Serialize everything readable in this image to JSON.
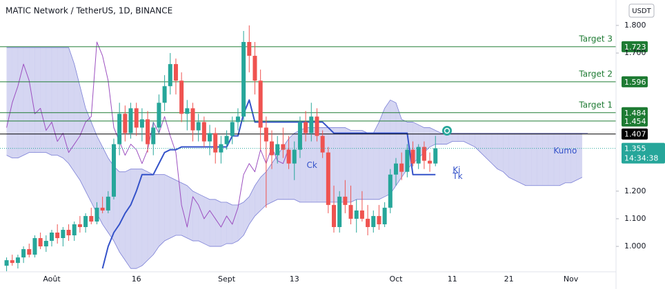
{
  "chart_data": {
    "type": "candlestick",
    "title": "MATIC Network / TetherUS, 1D, BINANCE",
    "currency": "USDT",
    "up_color": "#26a69a",
    "down_color": "#ef5350",
    "categories": [
      null,
      null,
      null,
      null,
      null,
      null,
      null,
      null,
      "Août",
      null,
      null,
      null,
      null,
      null,
      null,
      null,
      null,
      null,
      null,
      null,
      null,
      null,
      null,
      "16",
      null,
      null,
      null,
      null,
      null,
      null,
      null,
      null,
      null,
      null,
      null,
      null,
      null,
      null,
      null,
      "Sept",
      null,
      null,
      null,
      null,
      null,
      null,
      null,
      null,
      null,
      null,
      null,
      "13",
      null,
      null,
      null,
      null,
      null,
      null,
      null,
      null,
      null,
      null,
      null,
      null,
      null,
      null,
      null,
      null,
      null,
      "Oct",
      null,
      null,
      null,
      null,
      null,
      null,
      null,
      null,
      null,
      "11",
      null,
      null,
      null,
      null,
      null,
      null,
      null,
      null,
      null,
      "21",
      null,
      null,
      null,
      null,
      null,
      null,
      null,
      null,
      null,
      null,
      "Nov",
      null,
      null
    ],
    "open": [
      0.93,
      0.95,
      0.94,
      0.96,
      0.99,
      0.97,
      1.03,
      1.0,
      1.02,
      1.05,
      1.03,
      1.06,
      1.04,
      1.08,
      1.07,
      1.11,
      1.09,
      1.14,
      1.13,
      1.18,
      1.37,
      1.48,
      1.41,
      1.5,
      1.43,
      1.46,
      1.37,
      1.43,
      1.52,
      1.58,
      1.66,
      1.6,
      1.48,
      1.5,
      1.42,
      1.45,
      1.38,
      1.41,
      1.34,
      1.37,
      1.4,
      1.45,
      1.47,
      1.74,
      1.69,
      1.6,
      1.43,
      1.38,
      1.33,
      1.37,
      1.35,
      1.3,
      1.35,
      1.45,
      1.41,
      1.47,
      1.4,
      1.34,
      1.15,
      1.07,
      1.18,
      1.15,
      1.1,
      1.13,
      1.1,
      1.07,
      1.11,
      1.08,
      1.14,
      1.26,
      1.3,
      1.27,
      1.35,
      1.3,
      1.36,
      1.31,
      1.3,
      null,
      null,
      null,
      null,
      null,
      null,
      null,
      null,
      null,
      null,
      null,
      null,
      null,
      null,
      null,
      null,
      null,
      null,
      null,
      null,
      null,
      null,
      null,
      null,
      null,
      null
    ],
    "high": [
      0.96,
      0.97,
      0.97,
      1.0,
      1.01,
      1.04,
      1.05,
      1.04,
      1.06,
      1.08,
      1.07,
      1.08,
      1.09,
      1.11,
      1.12,
      1.14,
      1.16,
      1.18,
      1.2,
      1.39,
      1.52,
      1.51,
      1.52,
      1.52,
      1.5,
      1.49,
      1.45,
      1.55,
      1.62,
      1.7,
      1.68,
      1.63,
      1.53,
      1.52,
      1.48,
      1.47,
      1.44,
      1.43,
      1.4,
      1.42,
      1.47,
      1.5,
      1.78,
      1.8,
      1.74,
      1.64,
      1.47,
      1.42,
      1.4,
      1.43,
      1.4,
      1.38,
      1.47,
      1.49,
      1.52,
      1.5,
      1.42,
      1.36,
      1.22,
      1.2,
      1.24,
      1.22,
      1.17,
      1.2,
      1.15,
      1.13,
      1.15,
      1.16,
      1.28,
      1.32,
      1.34,
      1.37,
      1.38,
      1.37,
      1.38,
      1.34,
      1.4,
      null,
      null,
      null,
      null,
      null,
      null,
      null,
      null,
      null,
      null,
      null,
      null,
      null,
      null,
      null,
      null,
      null,
      null,
      null,
      null,
      null,
      null,
      null,
      null,
      null,
      null
    ],
    "low": [
      0.91,
      0.93,
      0.92,
      0.94,
      0.96,
      0.96,
      0.99,
      0.98,
      1.0,
      1.01,
      1.0,
      1.02,
      1.02,
      1.05,
      1.05,
      1.08,
      1.08,
      1.12,
      1.12,
      1.17,
      1.33,
      1.38,
      1.39,
      1.4,
      1.38,
      1.34,
      1.33,
      1.41,
      1.49,
      1.55,
      1.55,
      1.45,
      1.42,
      1.38,
      1.38,
      1.36,
      1.33,
      1.3,
      1.3,
      1.35,
      1.37,
      1.42,
      1.45,
      1.63,
      1.55,
      1.35,
      1.14,
      1.28,
      1.3,
      1.32,
      1.28,
      1.24,
      1.32,
      1.38,
      1.38,
      1.38,
      1.32,
      1.12,
      1.05,
      1.05,
      1.12,
      1.08,
      1.05,
      1.09,
      1.04,
      1.05,
      1.06,
      1.07,
      1.12,
      1.22,
      1.24,
      1.25,
      1.29,
      1.28,
      1.28,
      1.27,
      1.29,
      null,
      null,
      null,
      null,
      null,
      null,
      null,
      null,
      null,
      null,
      null,
      null,
      null,
      null,
      null,
      null,
      null,
      null,
      null,
      null,
      null,
      null,
      null,
      null,
      null,
      null
    ],
    "close": [
      0.95,
      0.94,
      0.96,
      0.99,
      0.97,
      1.03,
      1.0,
      1.02,
      1.05,
      1.03,
      1.06,
      1.04,
      1.08,
      1.07,
      1.11,
      1.09,
      1.14,
      1.13,
      1.18,
      1.37,
      1.48,
      1.41,
      1.5,
      1.43,
      1.46,
      1.37,
      1.43,
      1.52,
      1.58,
      1.66,
      1.6,
      1.48,
      1.5,
      1.42,
      1.45,
      1.38,
      1.41,
      1.34,
      1.37,
      1.4,
      1.45,
      1.47,
      1.74,
      1.69,
      1.6,
      1.43,
      1.38,
      1.33,
      1.37,
      1.35,
      1.3,
      1.35,
      1.45,
      1.41,
      1.47,
      1.4,
      1.34,
      1.15,
      1.07,
      1.18,
      1.15,
      1.1,
      1.13,
      1.1,
      1.07,
      1.11,
      1.08,
      1.14,
      1.26,
      1.3,
      1.27,
      1.35,
      1.3,
      1.36,
      1.31,
      1.3,
      1.355,
      null,
      null,
      null,
      null,
      null,
      null,
      null,
      null,
      null,
      null,
      null,
      null,
      null,
      null,
      null,
      null,
      null,
      null,
      null,
      null,
      null,
      null,
      null,
      null,
      null,
      null
    ],
    "kumo": {
      "name": "Kumo",
      "color": "#7b7fd6",
      "top": [
        1.72,
        1.72,
        1.72,
        1.72,
        1.72,
        1.72,
        1.72,
        1.72,
        1.72,
        1.72,
        1.72,
        1.72,
        1.66,
        1.58,
        1.5,
        1.45,
        1.4,
        1.36,
        1.32,
        1.29,
        1.27,
        1.27,
        1.28,
        1.28,
        1.28,
        1.27,
        1.26,
        1.26,
        1.26,
        1.25,
        1.24,
        1.23,
        1.22,
        1.2,
        1.19,
        1.18,
        1.17,
        1.17,
        1.16,
        1.16,
        1.15,
        1.15,
        1.16,
        1.18,
        1.22,
        1.25,
        1.27,
        1.3,
        1.33,
        1.36,
        1.39,
        1.41,
        1.42,
        1.43,
        1.43,
        1.43,
        1.43,
        1.43,
        1.43,
        1.43,
        1.43,
        1.42,
        1.42,
        1.42,
        1.41,
        1.41,
        1.45,
        1.5,
        1.53,
        1.52,
        1.46,
        1.45,
        1.45,
        1.44,
        1.43,
        1.43,
        1.42,
        1.41,
        1.41,
        1.41,
        1.41,
        1.41,
        1.41,
        1.41,
        1.41,
        1.41,
        1.41,
        1.41,
        1.41,
        1.41,
        1.41,
        1.41,
        1.41,
        1.41,
        1.41,
        1.41,
        1.41,
        1.41,
        1.41,
        1.41,
        1.41,
        1.41,
        1.41,
        1.41
      ],
      "bottom": [
        1.33,
        1.32,
        1.32,
        1.33,
        1.34,
        1.34,
        1.34,
        1.34,
        1.33,
        1.33,
        1.32,
        1.3,
        1.27,
        1.24,
        1.2,
        1.16,
        1.12,
        1.08,
        1.05,
        1.02,
        0.98,
        0.95,
        0.92,
        0.92,
        0.93,
        0.95,
        0.97,
        1.0,
        1.02,
        1.03,
        1.04,
        1.04,
        1.03,
        1.02,
        1.02,
        1.01,
        1.0,
        1.0,
        1.0,
        1.01,
        1.01,
        1.02,
        1.04,
        1.08,
        1.11,
        1.13,
        1.15,
        1.16,
        1.17,
        1.17,
        1.17,
        1.17,
        1.16,
        1.16,
        1.16,
        1.16,
        1.16,
        1.16,
        1.16,
        1.16,
        1.16,
        1.16,
        1.17,
        1.17,
        1.17,
        1.17,
        1.17,
        1.18,
        1.19,
        1.22,
        1.25,
        1.28,
        1.3,
        1.32,
        1.34,
        1.36,
        1.37,
        1.37,
        1.37,
        1.38,
        1.38,
        1.38,
        1.37,
        1.36,
        1.34,
        1.32,
        1.3,
        1.28,
        1.27,
        1.25,
        1.24,
        1.23,
        1.22,
        1.22,
        1.22,
        1.22,
        1.22,
        1.22,
        1.22,
        1.23,
        1.23,
        1.24,
        1.25
      ]
    },
    "kijun": {
      "name": "Ki",
      "color": "#3452c9",
      "values": [
        null,
        null,
        null,
        null,
        null,
        null,
        null,
        null,
        null,
        null,
        null,
        null,
        null,
        null,
        null,
        null,
        null,
        0.92,
        1.0,
        1.05,
        1.08,
        1.12,
        1.15,
        1.2,
        1.26,
        1.26,
        1.26,
        1.3,
        1.34,
        1.35,
        1.35,
        1.36,
        1.36,
        1.36,
        1.36,
        1.36,
        1.36,
        1.36,
        1.36,
        1.36,
        1.4,
        1.4,
        1.48,
        1.53,
        1.45,
        1.45,
        1.45,
        1.45,
        1.45,
        1.45,
        1.45,
        1.45,
        1.45,
        1.45,
        1.45,
        1.45,
        1.45,
        1.43,
        1.41,
        1.41,
        1.41,
        1.41,
        1.41,
        1.41,
        1.41,
        1.41,
        1.41,
        1.41,
        1.41,
        1.41,
        1.41,
        1.41,
        1.26,
        1.26,
        1.26,
        1.26,
        1.26,
        null,
        null,
        null,
        null,
        null,
        null,
        null,
        null,
        null,
        null,
        null,
        null,
        null,
        null,
        null,
        null,
        null,
        null,
        null,
        null,
        null,
        null,
        null,
        null,
        null,
        null
      ]
    },
    "chikou": {
      "name": "Ck",
      "color": "#9c4fc0",
      "values": [
        1.43,
        1.52,
        1.58,
        1.66,
        1.6,
        1.48,
        1.5,
        1.42,
        1.45,
        1.38,
        1.41,
        1.34,
        1.37,
        1.4,
        1.45,
        1.47,
        1.74,
        1.69,
        1.6,
        1.43,
        1.38,
        1.33,
        1.37,
        1.35,
        1.3,
        1.35,
        1.45,
        1.41,
        1.47,
        1.4,
        1.34,
        1.15,
        1.07,
        1.18,
        1.15,
        1.1,
        1.13,
        1.1,
        1.07,
        1.11,
        1.08,
        1.14,
        1.26,
        1.3,
        1.27,
        1.35,
        1.3,
        1.36,
        1.31,
        1.3,
        1.355,
        null,
        null,
        null,
        null,
        null,
        null,
        null,
        null,
        null,
        null,
        null,
        null,
        null,
        null,
        null,
        null,
        null,
        null,
        null,
        null,
        null,
        null,
        null,
        null,
        null,
        null,
        null,
        null,
        null,
        null,
        null,
        null,
        null,
        null,
        null,
        null,
        null,
        null,
        null,
        null,
        null,
        null,
        null,
        null,
        null,
        null,
        null,
        null,
        null,
        null,
        null,
        null
      ]
    },
    "annotations": [
      "Tk"
    ],
    "levels": [
      {
        "label": "Target 3",
        "value": 1.723,
        "color": "#1e7b33"
      },
      {
        "label": "Target 2",
        "value": 1.596,
        "color": "#1e7b33"
      },
      {
        "label": "Target 1",
        "value": 1.484,
        "color": "#1e7b33"
      },
      {
        "value": 1.454,
        "color": "#1e7b33"
      },
      {
        "value": 1.407,
        "color": "#000000"
      }
    ],
    "last": {
      "value": 1.355,
      "countdown": "14:34:38",
      "color": "#26a69a"
    },
    "ylim": [
      0.908,
      1.892
    ],
    "yticks": [
      {
        "value": 1.8,
        "label": "1.800"
      },
      {
        "value": 1.7,
        "label": "1.700"
      },
      {
        "value": 1.2,
        "label": "1.200"
      },
      {
        "value": 1.1,
        "label": "1.100"
      },
      {
        "value": 1.0,
        "label": "1.000"
      }
    ]
  }
}
